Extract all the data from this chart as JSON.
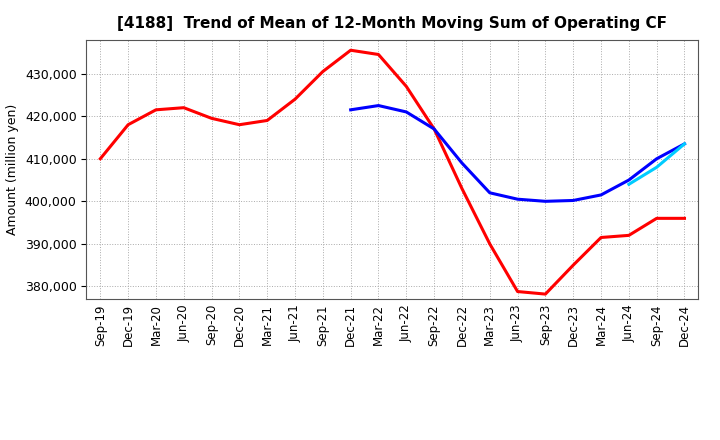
{
  "title": "[4188]  Trend of Mean of 12-Month Moving Sum of Operating CF",
  "ylabel": "Amount (million yen)",
  "background_color": "#ffffff",
  "plot_bg_color": "#ffffff",
  "grid_color": "#aaaaaa",
  "ylim": [
    377000,
    438000
  ],
  "yticks": [
    380000,
    390000,
    400000,
    410000,
    420000,
    430000
  ],
  "x_labels": [
    "Sep-19",
    "Dec-19",
    "Mar-20",
    "Jun-20",
    "Sep-20",
    "Dec-20",
    "Mar-21",
    "Jun-21",
    "Sep-21",
    "Dec-21",
    "Mar-22",
    "Jun-22",
    "Sep-22",
    "Dec-22",
    "Mar-23",
    "Jun-23",
    "Sep-23",
    "Dec-23",
    "Mar-24",
    "Jun-24",
    "Sep-24",
    "Dec-24"
  ],
  "series": {
    "3 Years": {
      "color": "#ff0000",
      "values": [
        410000,
        418000,
        421500,
        422000,
        419500,
        418000,
        419000,
        424000,
        430500,
        435500,
        434500,
        427000,
        417000,
        403000,
        390000,
        378800,
        378200,
        385000,
        391500,
        392000,
        396000,
        396000
      ]
    },
    "5 Years": {
      "color": "#0000ff",
      "values": [
        null,
        null,
        null,
        null,
        null,
        null,
        null,
        null,
        null,
        421500,
        422500,
        421000,
        417000,
        409000,
        402000,
        400500,
        400000,
        400200,
        401500,
        405000,
        410000,
        413500
      ]
    },
    "7 Years": {
      "color": "#00ccff",
      "values": [
        null,
        null,
        null,
        null,
        null,
        null,
        null,
        null,
        null,
        null,
        null,
        null,
        null,
        null,
        null,
        null,
        null,
        null,
        null,
        404000,
        408000,
        413500
      ]
    },
    "10 Years": {
      "color": "#008800",
      "values": [
        null,
        null,
        null,
        null,
        null,
        null,
        null,
        null,
        null,
        null,
        null,
        null,
        null,
        null,
        null,
        null,
        null,
        null,
        null,
        null,
        null,
        null
      ]
    }
  },
  "legend": {
    "3 Years": "#ff0000",
    "5 Years": "#0000ff",
    "7 Years": "#00ccff",
    "10 Years": "#008800"
  }
}
